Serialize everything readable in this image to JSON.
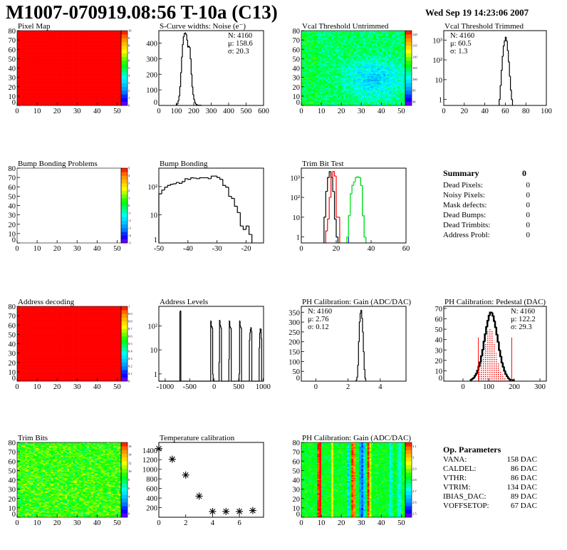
{
  "header": {
    "title": "M1007-070919.08:56 T-10a (C13)",
    "date": "Wed Sep 19 14:23:06 2007"
  },
  "colors": {
    "palette": [
      "#8000ff",
      "#0000ff",
      "#0080ff",
      "#00c0ff",
      "#00ffff",
      "#00ff80",
      "#00ff00",
      "#80ff00",
      "#ffff00",
      "#ffc000",
      "#ff8000",
      "#ff0000"
    ],
    "line": "#000000",
    "red": "#ff0000",
    "green": "#00ff00",
    "blue": "#0000ff"
  },
  "summary": {
    "title": "Summary",
    "total": "0",
    "items": [
      {
        "label": "Dead Pixels:",
        "value": "0"
      },
      {
        "label": "Noisy Pixels:",
        "value": "0"
      },
      {
        "label": "Mask defects:",
        "value": "0"
      },
      {
        "label": "Dead Bumps:",
        "value": "0"
      },
      {
        "label": "Dead Trimbits:",
        "value": "0"
      },
      {
        "label": "Address Probl:",
        "value": "0"
      }
    ]
  },
  "op_parameters": {
    "title": "Op. Parameters",
    "items": [
      {
        "label": "VANA:",
        "value": "158 DAC"
      },
      {
        "label": "CALDEL:",
        "value": "86 DAC"
      },
      {
        "label": "VTHR:",
        "value": "86 DAC"
      },
      {
        "label": "VTRIM:",
        "value": "134 DAC"
      },
      {
        "label": "IBIAS_DAC:",
        "value": "89 DAC"
      },
      {
        "label": "VOFFSETOP:",
        "value": "67 DAC"
      }
    ]
  },
  "chart_data": [
    {
      "type": "heatmap",
      "title": "Pixel Map",
      "xlim": [
        0,
        52
      ],
      "ylim": [
        0,
        80
      ],
      "xticks": [
        "0",
        "10",
        "20",
        "30",
        "40",
        "50"
      ],
      "yticks": [
        "0",
        "10",
        "20",
        "30",
        "40",
        "50",
        "60",
        "70",
        "80"
      ],
      "zlim": [
        0,
        10
      ],
      "zticks": [
        "0",
        "1",
        "2",
        "3",
        "4",
        "5",
        "6",
        "7",
        "8",
        "9",
        "10"
      ],
      "value": 10
    },
    {
      "type": "histogram",
      "title": "S-Curve widths: Noise (e⁻)",
      "xlim": [
        0,
        600
      ],
      "ylim": [
        0,
        480
      ],
      "log": false,
      "xticks": [
        "0",
        "100",
        "200",
        "300",
        "400",
        "500",
        "600"
      ],
      "yticks": [
        "0",
        "100",
        "200",
        "300",
        "400"
      ],
      "stats": [
        {
          "text": "N: 4160"
        },
        {
          "text": "μ: 158.6"
        },
        {
          "text": "σ: 20.3"
        }
      ],
      "series": [
        {
          "color": "#000000",
          "start": 100,
          "width": 5,
          "counts": [
            5,
            10,
            30,
            60,
            120,
            210,
            310,
            390,
            440,
            460,
            465,
            455,
            420,
            375,
            380,
            372,
            300,
            200,
            120,
            70,
            40,
            20,
            10,
            5,
            3,
            2,
            1,
            2,
            1
          ]
        }
      ]
    },
    {
      "type": "heatmap",
      "title": "Vcal Threshold Untrimmed",
      "xlim": [
        0,
        52
      ],
      "ylim": [
        0,
        80
      ],
      "xticks": [
        "0",
        "10",
        "20",
        "30",
        "40",
        "50"
      ],
      "yticks": [
        "0",
        "10",
        "20",
        "30",
        "40",
        "50",
        "60",
        "70",
        "80"
      ],
      "zlim": [
        87,
        123
      ],
      "zticks": [
        "90",
        "95",
        "100",
        "105",
        "110",
        "115",
        "120"
      ]
    },
    {
      "type": "histogram",
      "title": "Vcal Threshold Trimmed",
      "xlim": [
        0,
        100
      ],
      "ylim": [
        0.5,
        3000
      ],
      "log": true,
      "xticks": [
        "0",
        "20",
        "40",
        "60",
        "80",
        "100"
      ],
      "yticks": [
        "1",
        "10",
        "10²",
        "10³"
      ],
      "stats": [
        {
          "text": "N: 4160"
        },
        {
          "text": "μ: 60.5"
        },
        {
          "text": "σ:  1.3"
        }
      ],
      "series": [
        {
          "color": "#000000",
          "start": 54,
          "width": 1,
          "counts": [
            1,
            5,
            30,
            150,
            500,
            900,
            1400,
            900,
            300,
            80,
            15,
            3,
            1
          ]
        }
      ]
    },
    {
      "type": "heatmap",
      "title": "Bump Bonding Problems",
      "xlim": [
        0,
        52
      ],
      "ylim": [
        0,
        80
      ],
      "xticks": [
        "0",
        "10",
        "20",
        "30",
        "40",
        "50"
      ],
      "yticks": [
        "0",
        "10",
        "20",
        "30",
        "40",
        "50",
        "60",
        "70",
        "80"
      ],
      "zlim": [
        -5,
        5
      ],
      "zticks": [
        "-5",
        "-4",
        "-3",
        "-2",
        "-1",
        "0",
        "1",
        "2",
        "3",
        "4",
        "5"
      ],
      "empty": true
    },
    {
      "type": "histogram",
      "title": "Bump Bonding",
      "xlim": [
        -50,
        -14
      ],
      "ylim": [
        1,
        450
      ],
      "log": true,
      "xticks": [
        "-50",
        "-40",
        "-30",
        "-20"
      ],
      "yticks": [
        "1",
        "10",
        "10²"
      ],
      "series": [
        {
          "color": "#000000",
          "start": -50,
          "width": 1,
          "counts": [
            55,
            75,
            95,
            110,
            120,
            125,
            140,
            130,
            150,
            190,
            180,
            205,
            200,
            190,
            205,
            205,
            205,
            190,
            235,
            235,
            210,
            180,
            110,
            95,
            45,
            38,
            20,
            12,
            4,
            3,
            4,
            2
          ]
        }
      ]
    },
    {
      "type": "histogram",
      "title": "Trim Bit Test",
      "xlim": [
        0,
        60
      ],
      "ylim": [
        0.5,
        3000
      ],
      "log": true,
      "xticks": [
        "0",
        "20",
        "40",
        "60"
      ],
      "yticks": [
        "1",
        "10",
        "10²",
        "10³"
      ],
      "series": [
        {
          "color": "#000000",
          "start": 13,
          "width": 1,
          "counts": [
            10,
            200,
            1000,
            2000,
            1000,
            200,
            8,
            1
          ]
        },
        {
          "color": "#ff0000",
          "start": 14,
          "width": 1,
          "counts": [
            2,
            8,
            100,
            1000,
            2000,
            1200,
            10,
            10
          ]
        },
        {
          "color": "#0000ff",
          "start": 27,
          "width": 1,
          "counts": [
            12,
            150,
            400,
            600,
            1000,
            1100,
            1000,
            400,
            12,
            1
          ]
        },
        {
          "color": "#00ff00",
          "start": 26,
          "width": 1,
          "counts": [
            1,
            12,
            150,
            400,
            600,
            1000,
            1100,
            1000,
            400,
            12,
            1
          ]
        }
      ]
    },
    {
      "type": "heatmap",
      "title": "Address decoding",
      "xlim": [
        0,
        52
      ],
      "ylim": [
        0,
        80
      ],
      "xticks": [
        "0",
        "10",
        "20",
        "30",
        "40",
        "50"
      ],
      "yticks": [
        "0",
        "10",
        "20",
        "30",
        "40",
        "50",
        "60",
        "70",
        "80"
      ],
      "zlim": [
        0,
        1
      ],
      "zticks": [
        "0",
        "0.1",
        "0.2",
        "0.3",
        "0.4",
        "0.5",
        "0.6",
        "0.7",
        "0.8",
        "0.9",
        "1"
      ],
      "value": 1
    },
    {
      "type": "histogram",
      "title": "Address Levels",
      "xlim": [
        -1130,
        1010
      ],
      "ylim": [
        0.5,
        650
      ],
      "log": true,
      "xticks": [
        "-1000",
        "-500",
        "0",
        "500",
        "1000"
      ],
      "tickvals": [
        -1000,
        -500,
        0,
        500,
        1000
      ],
      "yticks": [
        "1",
        "10",
        "10²"
      ],
      "series": [
        {
          "color": "#000000",
          "start": -1130,
          "width": 10,
          "counts": [
            0,
            0,
            0,
            0,
            0,
            0,
            0,
            0,
            0,
            0,
            0,
            0,
            0,
            0,
            0,
            0,
            0,
            0,
            0,
            0,
            0,
            0,
            0,
            0,
            0,
            0,
            0,
            0,
            0,
            0,
            0,
            0,
            0,
            0,
            0,
            0,
            0,
            0,
            0,
            0,
            0,
            0,
            0,
            380,
            420,
            0,
            0,
            0,
            0,
            0,
            0,
            0,
            0,
            0,
            0,
            0,
            0,
            0,
            0,
            0,
            0,
            0,
            0,
            0,
            0,
            0,
            0,
            0,
            0,
            0,
            0,
            0,
            0,
            0,
            0,
            0,
            0,
            0,
            0,
            0,
            0,
            0,
            0,
            0,
            0,
            0,
            0,
            0,
            0,
            0,
            0,
            0,
            0,
            0,
            0,
            0,
            0,
            0,
            0,
            0,
            0,
            0,
            0,
            0,
            0,
            0,
            160,
            90,
            95,
            80,
            1,
            0,
            0,
            0,
            0,
            0,
            0,
            0,
            0,
            0,
            0,
            0,
            0,
            3,
            170,
            110,
            95,
            80,
            0,
            0,
            0,
            0,
            0,
            0,
            0,
            0,
            0,
            0,
            0,
            0,
            0,
            0,
            0,
            4,
            160,
            95,
            85,
            80,
            0,
            0,
            0,
            0,
            0,
            0,
            0,
            0,
            0,
            0,
            0,
            0,
            0,
            0,
            0,
            0,
            1,
            160,
            100,
            90,
            80,
            0,
            0,
            0,
            0,
            0,
            0,
            0,
            0,
            0,
            0,
            0,
            0,
            0,
            0,
            0,
            0,
            25,
            50,
            70,
            85,
            60,
            0,
            0,
            0,
            0,
            0,
            0,
            0,
            0,
            0,
            0,
            0,
            0,
            0,
            0,
            0,
            12,
            50,
            75,
            75,
            30,
            0,
            0
          ]
        }
      ]
    },
    {
      "type": "histogram",
      "title": "PH Calibration: Gain (ADC/DAC)",
      "xlim": [
        -0.9,
        5.6
      ],
      "ylim": [
        0,
        380
      ],
      "log": false,
      "xticks": [
        "0",
        "2",
        "4"
      ],
      "tickvals": [
        0,
        2,
        4
      ],
      "yticks": [
        "0",
        "50",
        "100",
        "150",
        "200",
        "250",
        "300",
        "350"
      ],
      "stats": [
        {
          "text": "N: 4160"
        },
        {
          "text": "μ: 2.76"
        },
        {
          "text": "σ: 0.12"
        }
      ],
      "series": [
        {
          "color": "#000000",
          "start": 2.5,
          "width": 0.05,
          "counts": [
            5,
            20,
            80,
            200,
            300,
            345,
            360,
            320,
            250,
            150,
            60,
            15
          ]
        }
      ]
    },
    {
      "type": "histogram",
      "title": "PH Calibration: Pedestal (DAC)",
      "xlim": [
        -75,
        325
      ],
      "ylim": [
        0,
        72
      ],
      "log": false,
      "xticks": [
        "0",
        "100",
        "200",
        "300"
      ],
      "tickvals": [
        0,
        100,
        200,
        300
      ],
      "yticks": [
        "0",
        "10",
        "20",
        "30",
        "40",
        "50",
        "60",
        "70"
      ],
      "stats": [
        {
          "text": "N: 4160",
          "color": "#000000"
        },
        {
          "text": "μ: 122.2",
          "color": "#ff0000"
        },
        {
          "text": "σ: 29.3",
          "color": "#ff0000"
        }
      ],
      "cut_lines": [
        60,
        190
      ],
      "series": [
        {
          "color": "#000000",
          "fill": "none",
          "start": 30,
          "width": 5,
          "counts": [
            1,
            2,
            3,
            5,
            7,
            10,
            14,
            18,
            24,
            30,
            38,
            45,
            52,
            58,
            63,
            66,
            66,
            63,
            58,
            52,
            45,
            38,
            30,
            24,
            18,
            14,
            10,
            7,
            5,
            3,
            2,
            1,
            1,
            1
          ]
        },
        {
          "color": "#ff0000",
          "fill": "hatched",
          "start": 60,
          "width": 5,
          "counts": [
            10,
            14,
            18,
            22,
            28,
            36,
            43,
            48,
            51,
            51,
            48,
            43,
            36,
            28,
            22,
            18,
            14,
            10,
            7,
            5,
            3,
            2,
            1,
            1,
            1,
            1
          ]
        }
      ]
    },
    {
      "type": "heatmap",
      "title": "Trim Bits",
      "xlim": [
        0,
        52
      ],
      "ylim": [
        0,
        80
      ],
      "xticks": [
        "0",
        "10",
        "20",
        "30",
        "40",
        "50"
      ],
      "yticks": [
        "0",
        "10",
        "20",
        "30",
        "40",
        "50",
        "60",
        "70",
        "80"
      ],
      "zlim": [
        0,
        16
      ],
      "zticks": [
        "0",
        "2",
        "4",
        "6",
        "8",
        "10",
        "12",
        "14",
        "16"
      ]
    },
    {
      "type": "scatter",
      "title": "Temperature calibration",
      "xlim": [
        0,
        7.8
      ],
      "ylim": [
        0,
        1560
      ],
      "xticks": [
        "0",
        "2",
        "4",
        "6"
      ],
      "tickvals": [
        0,
        2,
        4,
        6
      ],
      "yticks": [
        "200",
        "400",
        "600",
        "800",
        "1000",
        "1200",
        "1400"
      ],
      "ytickvals": [
        200,
        400,
        600,
        800,
        1000,
        1200,
        1400
      ],
      "x": [
        0,
        1,
        2,
        3,
        4,
        5,
        6,
        7
      ],
      "y": [
        1430,
        1210,
        880,
        440,
        120,
        120,
        120,
        140
      ]
    },
    {
      "type": "heatmap",
      "title": "PH Calibration: Gain (ADC/DAC)",
      "xlim": [
        0,
        52
      ],
      "ylim": [
        0,
        80
      ],
      "xticks": [
        "0",
        "10",
        "20",
        "30",
        "40",
        "50"
      ],
      "yticks": [
        "0",
        "10",
        "20",
        "30",
        "40",
        "50",
        "60",
        "70",
        "80"
      ],
      "zlim": [
        2.45,
        3.15
      ],
      "zticks": [
        "2.5",
        "2.6",
        "2.7",
        "2.8",
        "2.9",
        "3",
        "3.1"
      ]
    }
  ]
}
